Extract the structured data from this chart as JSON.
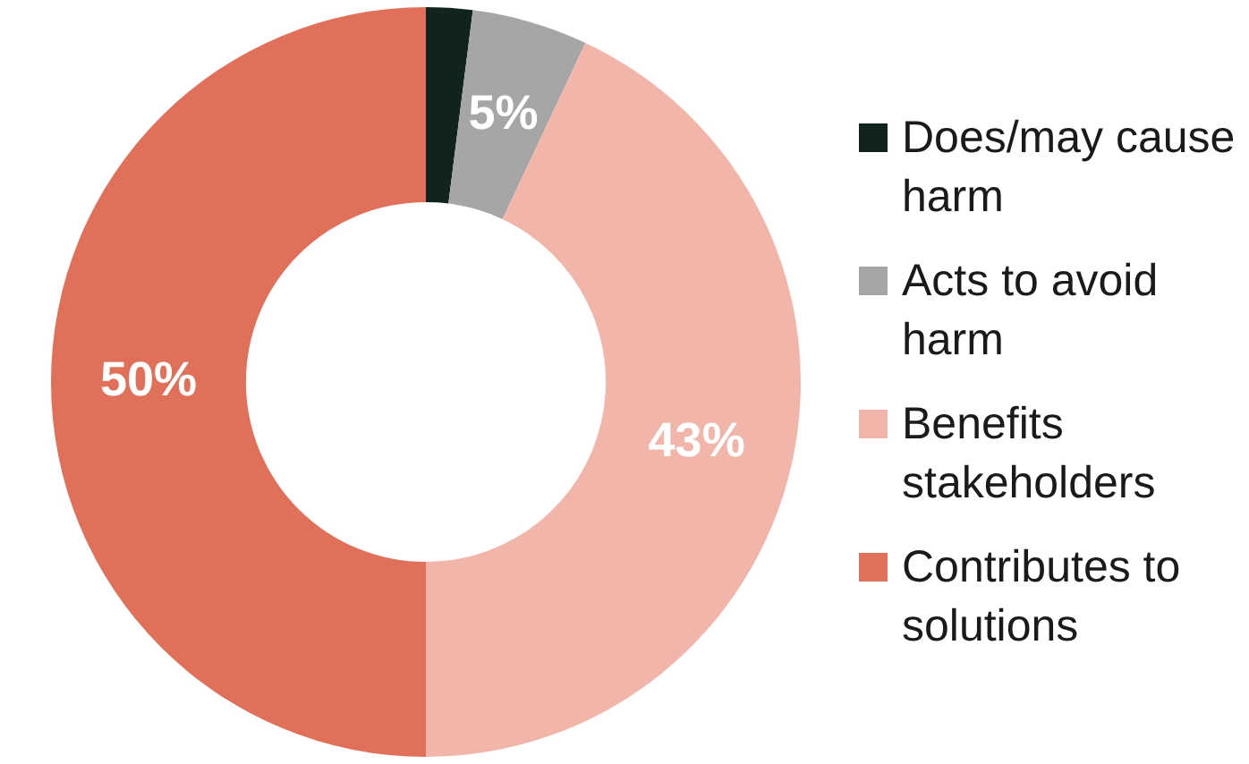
{
  "chart_data": {
    "type": "donut",
    "categories": [
      "Does/may cause harm",
      "Acts to avoid harm",
      "Benefits stakeholders",
      "Contributes to solutions"
    ],
    "values": [
      2,
      5,
      43,
      50
    ],
    "colors": [
      "#10231d",
      "#a6a6a6",
      "#f2b5aa",
      "#e07059"
    ],
    "value_labels": [
      null,
      "5%",
      "43%",
      "50%"
    ],
    "legend": "right"
  }
}
